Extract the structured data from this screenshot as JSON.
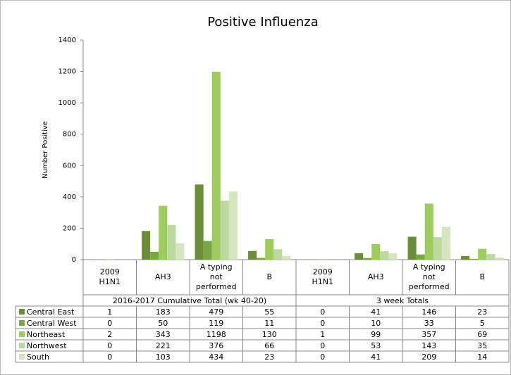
{
  "chart_data": {
    "type": "bar",
    "title": "Positive Influenza",
    "y_label": "Number Positive",
    "groups": [
      {
        "name": "2016-2017 Cumulative Total (wk 40-20)",
        "categories": [
          "2009 H1N1",
          "AH3",
          "A typing not performed",
          "B"
        ]
      },
      {
        "name": "3 week Totals",
        "categories": [
          "2009 H1N1",
          "AH3",
          "A typing not performed",
          "B"
        ]
      }
    ],
    "series": [
      {
        "name": "Central East",
        "color": "#6b8e3a",
        "values": [
          1,
          183,
          479,
          55,
          0,
          41,
          146,
          23
        ]
      },
      {
        "name": "Central West",
        "color": "#79a843",
        "values": [
          0,
          50,
          119,
          11,
          0,
          10,
          33,
          5
        ]
      },
      {
        "name": "Northeast",
        "color": "#9dcb5c",
        "values": [
          2,
          343,
          1198,
          130,
          1,
          99,
          357,
          69
        ]
      },
      {
        "name": "Northwest",
        "color": "#bcd99f",
        "values": [
          0,
          221,
          376,
          66,
          0,
          53,
          143,
          35
        ]
      },
      {
        "name": "South",
        "color": "#d4e5c0",
        "values": [
          0,
          103,
          434,
          23,
          0,
          41,
          209,
          14
        ]
      }
    ],
    "ylim": [
      0,
      1400
    ],
    "yticks": [
      0,
      200,
      400,
      600,
      800,
      1000,
      1200,
      1400
    ],
    "grid": false
  }
}
